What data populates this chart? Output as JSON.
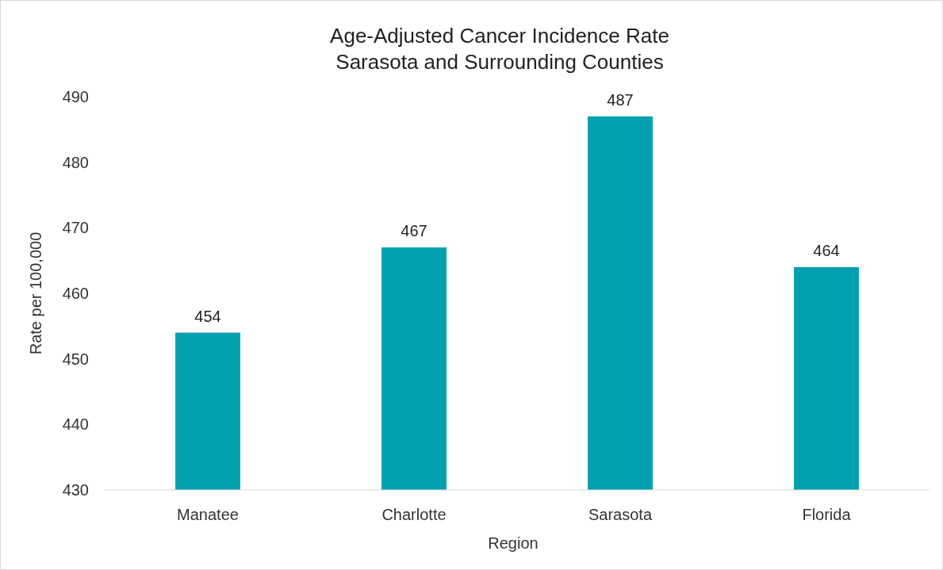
{
  "chart_data": {
    "type": "bar",
    "title": "Age-Adjusted Cancer Incidence Rate\nSarasota and Surrounding Counties",
    "xlabel": "Region",
    "ylabel": "Rate per 100,000",
    "categories": [
      "Manatee",
      "Charlotte",
      "Sarasota",
      "Florida"
    ],
    "values": [
      454,
      467,
      487,
      464
    ],
    "color": "#00a0b0",
    "ylim": [
      430,
      490
    ],
    "yticks": [
      430,
      440,
      450,
      460,
      470,
      480,
      490
    ],
    "data_labels": true,
    "grid": false
  }
}
